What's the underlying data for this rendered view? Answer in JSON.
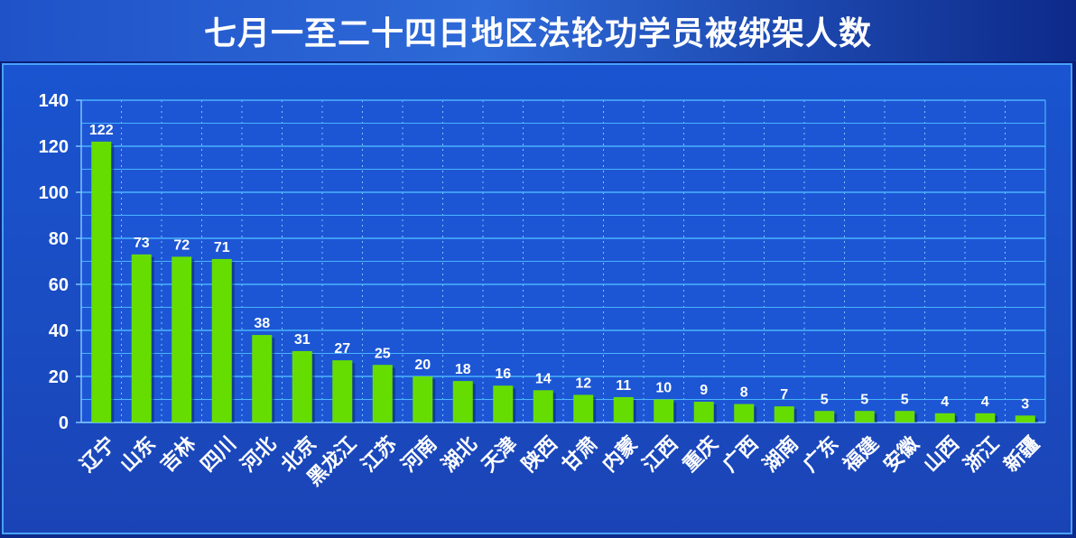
{
  "title": "七月一至二十四日地区法轮功学员被绑架人数",
  "chart_data": {
    "type": "bar",
    "title": "七月一至二十四日地区法轮功学员被绑架人数",
    "categories": [
      "辽宁",
      "山东",
      "吉林",
      "四川",
      "河北",
      "北京",
      "黑龙江",
      "江苏",
      "河南",
      "湖北",
      "天津",
      "陕西",
      "甘肃",
      "内蒙",
      "江西",
      "重庆",
      "广西",
      "湖南",
      "广东",
      "福建",
      "安徽",
      "山西",
      "浙江",
      "新疆"
    ],
    "values": [
      122,
      73,
      72,
      71,
      38,
      31,
      27,
      25,
      20,
      18,
      16,
      14,
      12,
      11,
      10,
      9,
      8,
      7,
      5,
      5,
      5,
      4,
      4,
      3
    ],
    "ylim": [
      0,
      140
    ],
    "yticks": [
      "0",
      "20",
      "40",
      "60",
      "80",
      "100",
      "120",
      "140"
    ],
    "grid": true,
    "bar_color": "#66dd00",
    "data_labels": true
  }
}
